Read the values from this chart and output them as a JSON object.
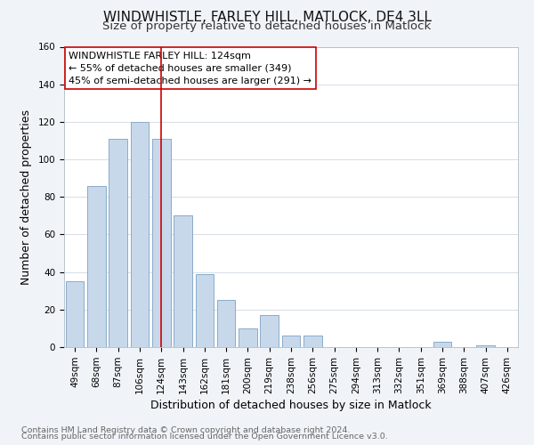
{
  "title": "WINDWHISTLE, FARLEY HILL, MATLOCK, DE4 3LL",
  "subtitle": "Size of property relative to detached houses in Matlock",
  "xlabel": "Distribution of detached houses by size in Matlock",
  "ylabel": "Number of detached properties",
  "footer_line1": "Contains HM Land Registry data © Crown copyright and database right 2024.",
  "footer_line2": "Contains public sector information licensed under the Open Government Licence v3.0.",
  "categories": [
    "49sqm",
    "68sqm",
    "87sqm",
    "106sqm",
    "124sqm",
    "143sqm",
    "162sqm",
    "181sqm",
    "200sqm",
    "219sqm",
    "238sqm",
    "256sqm",
    "275sqm",
    "294sqm",
    "313sqm",
    "332sqm",
    "351sqm",
    "369sqm",
    "388sqm",
    "407sqm",
    "426sqm"
  ],
  "values": [
    35,
    86,
    111,
    120,
    111,
    70,
    39,
    25,
    10,
    17,
    6,
    6,
    0,
    0,
    0,
    0,
    0,
    3,
    0,
    1,
    0
  ],
  "vline_x_index": 4,
  "vline_color": "#cc0000",
  "bar_color": "#c8d8eb",
  "bar_edge_color": "#8aaac8",
  "annotation_title": "WINDWHISTLE FARLEY HILL: 124sqm",
  "annotation_line1": "← 55% of detached houses are smaller (349)",
  "annotation_line2": "45% of semi-detached houses are larger (291) →",
  "annotation_box_facecolor": "#ffffff",
  "annotation_box_edgecolor": "#cc0000",
  "ylim": [
    0,
    160
  ],
  "yticks": [
    0,
    20,
    40,
    60,
    80,
    100,
    120,
    140,
    160
  ],
  "title_fontsize": 11,
  "subtitle_fontsize": 9.5,
  "axis_label_fontsize": 9,
  "tick_fontsize": 7.5,
  "annotation_fontsize": 8,
  "footer_fontsize": 6.8,
  "background_color": "#f0f4f8",
  "plot_background_color": "#ffffff",
  "grid_color": "#d0d8e0"
}
